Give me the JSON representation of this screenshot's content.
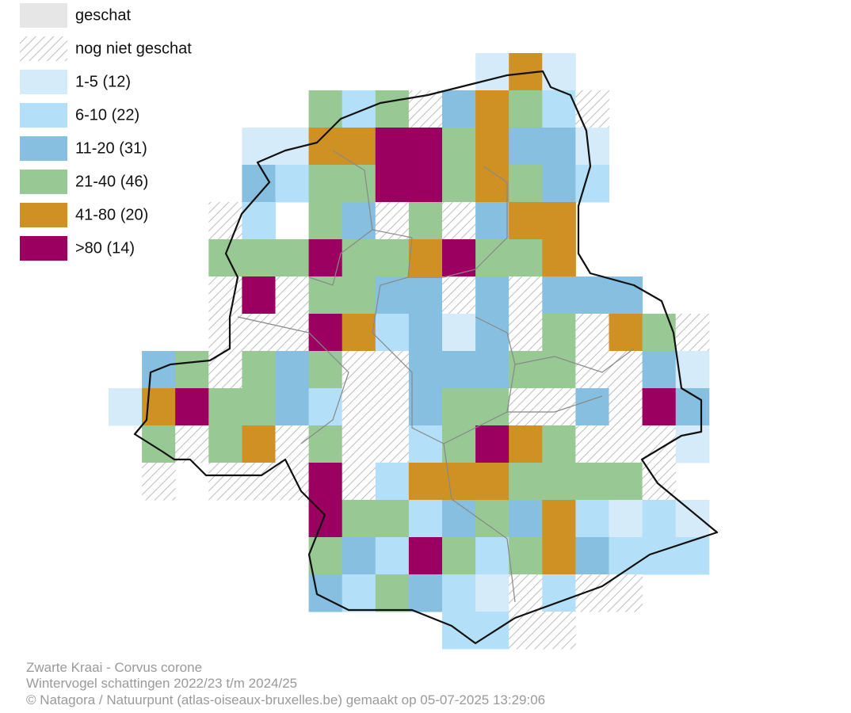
{
  "legend": [
    {
      "label": "geschat"
    },
    {
      "label": "nog niet geschat"
    },
    {
      "label": "1-5 (12)"
    },
    {
      "label": "6-10 (22)"
    },
    {
      "label": "11-20 (31)"
    },
    {
      "label": "21-40 (46)"
    },
    {
      "label": "41-80 (20)"
    },
    {
      "label": ">80 (14)"
    }
  ],
  "footer": {
    "species": "Zwarte Kraai - Corvus corone",
    "subtitle": "Wintervogel schattingen 2022/23 t/m 2024/25",
    "credit": "© Natagora / Natuurpunt (atlas-oiseaux-bruxelles.be) gemaakt op 05-07-2025 13:29:06"
  }
}
